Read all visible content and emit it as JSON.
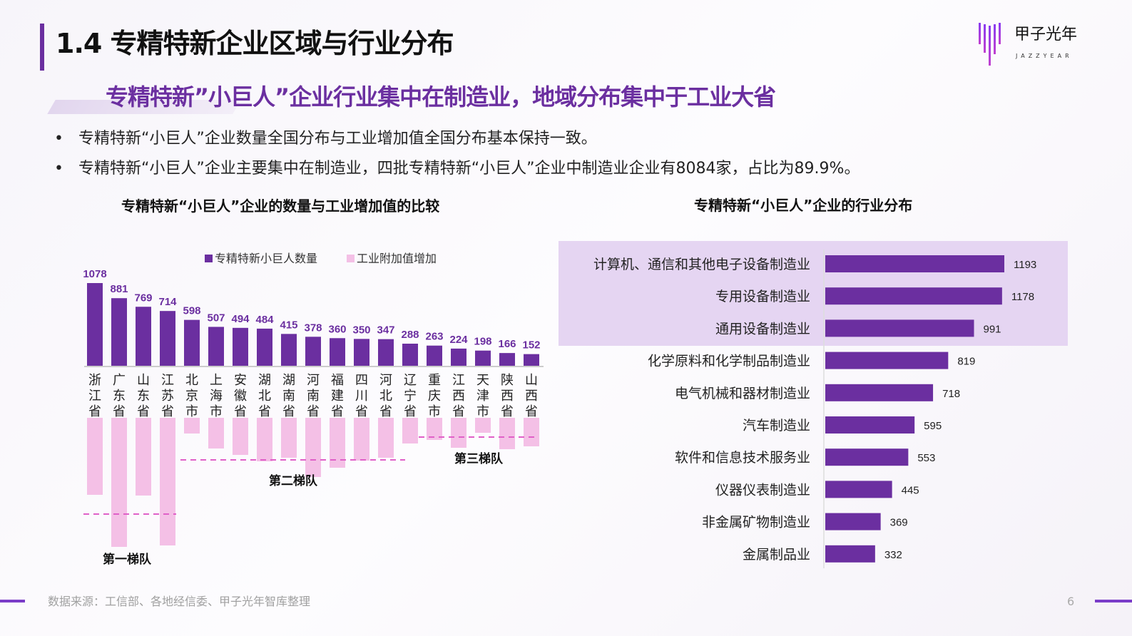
{
  "header": {
    "title": "1.4 专精特新企业区域与行业分布",
    "logo_text": "甲子光年",
    "logo_subtext": "JAZZYEAR"
  },
  "subtitle": "专精特新”小巨人”企业行业集中在制造业，地域分布集中于工业大省",
  "bullets": [
    "专精特新“小巨人”企业数量全国分布与工业增加值全国分布基本保持一致。",
    "专精特新“小巨人”企业主要集中在制造业，四批专精特新“小巨人”企业中制造业企业有8084家，占比为89.9%。"
  ],
  "chart_data": [
    {
      "type": "bar",
      "title": "专精特新“小巨人”企业的数量与工业增加值的比较",
      "legend": [
        "专精特新小巨人数量",
        "工业附加值增加"
      ],
      "legend_position": "top",
      "categories": [
        "浙江省",
        "广东省",
        "山东省",
        "江苏省",
        "北京市",
        "上海市",
        "安徽省",
        "湖北省",
        "湖南省",
        "河南省",
        "福建省",
        "四川省",
        "河北省",
        "辽宁省",
        "重庆市",
        "江西省",
        "天津市",
        "陕西省",
        "山西省"
      ],
      "series": [
        {
          "name": "专精特新小巨人数量",
          "color": "#6b2fa0",
          "values": [
            1078,
            881,
            769,
            714,
            598,
            507,
            494,
            484,
            415,
            378,
            360,
            350,
            347,
            288,
            263,
            224,
            198,
            166,
            152
          ]
        },
        {
          "name": "工业附加值增加",
          "color": "#f4c0e6",
          "relative_values": [
            108,
            181,
            109,
            179,
            22,
            43,
            52,
            61,
            56,
            83,
            70,
            60,
            56,
            36,
            31,
            42,
            21,
            44,
            40
          ]
        }
      ],
      "annotations": [
        {
          "label": "第一梯队",
          "range": [
            0,
            3
          ]
        },
        {
          "label": "第二梯队",
          "range": [
            4,
            12
          ]
        },
        {
          "label": "第三梯队",
          "range": [
            13,
            18
          ]
        }
      ]
    },
    {
      "type": "bar",
      "orientation": "horizontal",
      "title": "专精特新“小巨人”企业的行业分布",
      "categories": [
        "计算机、通信和其他电子设备制造业",
        "专用设备制造业",
        "通用设备制造业",
        "化学原料和化学制品制造业",
        "电气机械和器材制造业",
        "汽车制造业",
        "软件和信息技术服务业",
        "仪器仪表制造业",
        "非金属矿物制造业",
        "金属制品业"
      ],
      "values": [
        1193,
        1178,
        991,
        819,
        718,
        595,
        553,
        445,
        369,
        332
      ],
      "highlighted": [
        0,
        1,
        2
      ],
      "color": "#6b2fa0"
    }
  ],
  "footer": {
    "source": "数据来源：工信部、各地经信委、甲子光年智库整理",
    "page": "6"
  }
}
